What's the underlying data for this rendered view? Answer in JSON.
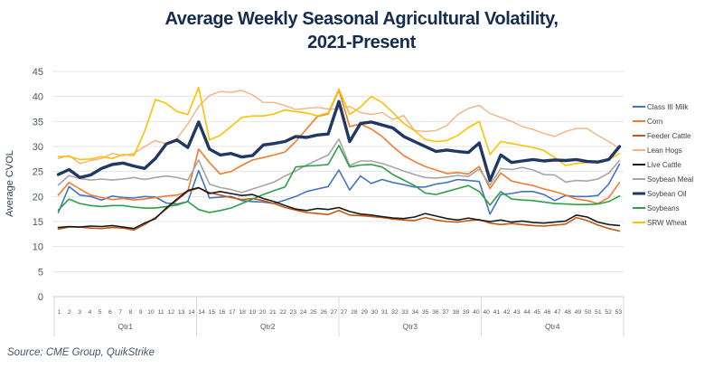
{
  "title": {
    "line1": "Average Weekly Seasonal Agricultural Volatility,",
    "line2": "2021-Present"
  },
  "source": "Source: CME Group, QuikStrike",
  "y_axis": {
    "label": "Average CVOL",
    "ticks": [
      0,
      5,
      10,
      15,
      20,
      25,
      30,
      35,
      40,
      45
    ]
  },
  "x_axis": {
    "quarters": [
      {
        "label": "Qtr1",
        "start": 1,
        "end": 14
      },
      {
        "label": "Qtr2",
        "start": 14,
        "end": 27
      },
      {
        "label": "Qtr3",
        "start": 27,
        "end": 40
      },
      {
        "label": "Qtr4",
        "start": 40,
        "end": 53
      }
    ]
  },
  "chart_data": {
    "type": "line",
    "ylim": [
      0,
      45
    ],
    "grid": true,
    "legend_position": "right",
    "x_weeks": [
      1,
      2,
      3,
      4,
      5,
      6,
      7,
      8,
      9,
      10,
      11,
      12,
      13,
      14,
      15,
      16,
      17,
      18,
      19,
      20,
      21,
      22,
      23,
      24,
      25,
      26,
      27,
      28,
      29,
      30,
      31,
      32,
      33,
      34,
      35,
      36,
      37,
      38,
      39,
      40,
      41,
      42,
      43,
      44,
      45,
      46,
      47,
      48,
      49,
      50,
      51,
      52,
      53
    ],
    "series": [
      {
        "name": "Class III Milk",
        "color": "#4472C4",
        "width": 1.6,
        "values": [
          16.8,
          22.0,
          20.3,
          20.0,
          19.3,
          20.1,
          19.8,
          19.7,
          20.0,
          19.9,
          18.7,
          18.5,
          19.0,
          25.2,
          19.7,
          19.9,
          20.0,
          19.2,
          19.0,
          18.9,
          18.6,
          19.3,
          20.0,
          21.0,
          21.5,
          22.0,
          25.3,
          21.3,
          24.1,
          22.6,
          23.4,
          22.8,
          22.4,
          21.9,
          21.9,
          22.5,
          22.8,
          23.4,
          23.2,
          23.0,
          16.5,
          20.4,
          20.6,
          21.0,
          21.0,
          20.4,
          19.2,
          20.2,
          20.0,
          20.0,
          20.2,
          22.5,
          26.5
        ]
      },
      {
        "name": "Corn",
        "color": "#ED7D31",
        "width": 1.6,
        "values": [
          20.3,
          22.8,
          21.5,
          20.3,
          19.8,
          19.4,
          19.6,
          19.3,
          19.5,
          19.8,
          20.1,
          20.3,
          21.0,
          29.5,
          26.8,
          24.5,
          25.0,
          26.2,
          27.3,
          27.8,
          28.3,
          28.9,
          31.0,
          33.5,
          36.0,
          36.5,
          41.3,
          34.0,
          34.5,
          33.5,
          32.0,
          30.0,
          28.2,
          27.0,
          26.0,
          25.3,
          24.6,
          24.8,
          24.5,
          26.0,
          21.6,
          24.7,
          23.1,
          22.6,
          22.2,
          21.5,
          21.0,
          20.3,
          19.5,
          19.2,
          18.6,
          19.8,
          22.8
        ]
      },
      {
        "name": "Feeder Cattle",
        "color": "#C45911",
        "width": 1.6,
        "values": [
          13.5,
          13.9,
          13.9,
          13.7,
          13.6,
          13.8,
          13.7,
          13.3,
          14.4,
          15.8,
          17.5,
          19.3,
          21.0,
          21.7,
          20.8,
          20.3,
          19.8,
          19.4,
          19.6,
          19.2,
          18.6,
          17.8,
          17.3,
          16.8,
          16.6,
          16.4,
          17.2,
          16.3,
          16.2,
          16.0,
          15.8,
          15.5,
          15.3,
          15.2,
          15.8,
          15.3,
          15.0,
          14.9,
          15.2,
          15.4,
          14.7,
          14.4,
          14.6,
          14.4,
          14.2,
          14.1,
          14.3,
          14.5,
          15.8,
          15.2,
          14.3,
          13.6,
          13.1
        ]
      },
      {
        "name": "Lean Hogs",
        "color": "#F4B183",
        "width": 1.4,
        "values": [
          27.6,
          28.2,
          26.6,
          27.2,
          27.6,
          28.6,
          28.2,
          28.6,
          30.0,
          31.2,
          30.5,
          31.6,
          34.5,
          38.0,
          40.2,
          41.0,
          40.8,
          41.2,
          40.3,
          38.8,
          38.8,
          38.2,
          37.4,
          37.6,
          37.8,
          37.5,
          37.5,
          38.0,
          36.8,
          36.4,
          36.8,
          35.4,
          36.2,
          33.2,
          33.0,
          33.2,
          34.2,
          36.4,
          37.6,
          38.2,
          36.6,
          35.8,
          35.0,
          34.0,
          33.4,
          32.6,
          32.0,
          33.0,
          33.6,
          33.6,
          32.2,
          31.0,
          29.6
        ]
      },
      {
        "name": "Live Cattle",
        "color": "#1A1A1A",
        "width": 1.6,
        "values": [
          13.8,
          14.0,
          13.9,
          14.1,
          14.0,
          14.2,
          13.9,
          13.6,
          14.7,
          15.6,
          17.7,
          19.5,
          21.2,
          21.8,
          20.6,
          21.0,
          20.6,
          20.2,
          20.4,
          19.6,
          19.0,
          18.2,
          17.5,
          17.2,
          17.6,
          17.4,
          17.8,
          17.0,
          16.5,
          16.3,
          16.0,
          15.7,
          15.6,
          15.9,
          16.6,
          16.1,
          15.6,
          15.3,
          15.7,
          15.3,
          15.0,
          15.3,
          14.9,
          15.1,
          14.8,
          14.7,
          14.9,
          15.1,
          16.3,
          15.9,
          14.9,
          14.4,
          14.2
        ]
      },
      {
        "name": "Soybean Meal",
        "color": "#A6A6A6",
        "width": 1.6,
        "values": [
          22.3,
          24.2,
          23.6,
          23.3,
          23.5,
          23.3,
          23.5,
          23.8,
          23.4,
          23.8,
          24.1,
          23.8,
          23.3,
          27.3,
          22.5,
          21.8,
          21.4,
          20.8,
          21.5,
          22.2,
          22.9,
          24.1,
          25.1,
          26.3,
          27.3,
          28.3,
          31.5,
          26.2,
          27.1,
          27.1,
          26.6,
          25.9,
          25.1,
          24.4,
          23.8,
          23.7,
          23.9,
          24.2,
          24.0,
          25.5,
          22.3,
          25.6,
          25.4,
          25.8,
          25.3,
          24.4,
          24.3,
          22.9,
          23.2,
          23.1,
          23.5,
          24.7,
          27.2
        ]
      },
      {
        "name": "Soybean Oil",
        "color": "#1F3864",
        "width": 3.4,
        "values": [
          24.4,
          25.4,
          23.8,
          24.3,
          25.6,
          26.4,
          26.7,
          26.1,
          25.6,
          27.6,
          30.5,
          31.3,
          29.8,
          34.9,
          29.5,
          28.3,
          28.6,
          27.9,
          28.2,
          30.3,
          30.6,
          31.0,
          32.0,
          31.8,
          32.3,
          32.5,
          39.0,
          31.0,
          34.6,
          34.9,
          34.3,
          33.7,
          32.0,
          31.0,
          30.0,
          29.0,
          29.3,
          29.0,
          28.8,
          30.7,
          23.2,
          28.3,
          26.8,
          27.1,
          27.4,
          27.1,
          27.3,
          27.2,
          27.4,
          27.0,
          26.9,
          27.4,
          30.0
        ]
      },
      {
        "name": "Soybeans",
        "color": "#2CA048",
        "width": 1.6,
        "values": [
          17.3,
          19.5,
          18.6,
          18.2,
          18.0,
          18.2,
          18.2,
          17.9,
          17.7,
          17.7,
          18.0,
          18.3,
          19.0,
          17.4,
          16.8,
          17.2,
          17.7,
          18.6,
          19.5,
          20.4,
          21.2,
          21.9,
          25.9,
          26.1,
          26.2,
          26.4,
          30.2,
          25.9,
          26.3,
          26.4,
          25.9,
          24.4,
          23.3,
          22.2,
          20.7,
          20.4,
          21.0,
          21.6,
          22.2,
          21.0,
          18.3,
          21.0,
          19.5,
          19.3,
          19.2,
          18.9,
          18.6,
          18.5,
          18.4,
          18.4,
          18.5,
          19.0,
          20.1
        ]
      },
      {
        "name": "SRW Wheat",
        "color": "#FFC000",
        "width": 1.6,
        "values": [
          28.0,
          28.0,
          27.4,
          27.5,
          28.0,
          27.6,
          28.4,
          28.2,
          33.0,
          39.4,
          38.6,
          37.0,
          36.4,
          41.8,
          31.3,
          32.2,
          34.0,
          35.8,
          36.1,
          36.1,
          36.5,
          37.3,
          37.0,
          36.7,
          36.1,
          36.7,
          41.5,
          36.4,
          37.9,
          40.0,
          38.8,
          36.8,
          34.6,
          33.2,
          31.4,
          31.0,
          31.2,
          32.2,
          33.8,
          35.0,
          28.4,
          31.0,
          30.6,
          30.2,
          29.8,
          29.2,
          27.8,
          26.2,
          26.6,
          26.8,
          26.9,
          27.4,
          28.6
        ]
      }
    ]
  }
}
